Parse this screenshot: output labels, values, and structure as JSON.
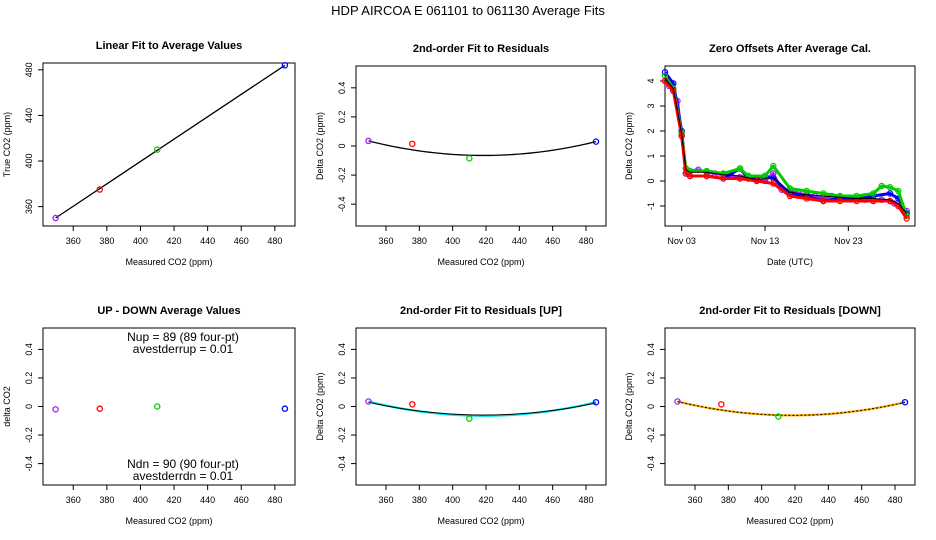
{
  "figure": {
    "title": "HDP    AIRCOA E    061101 to 061130    Average Fits"
  },
  "chart_data": [
    {
      "id": "p1",
      "type": "scatter",
      "title": "Linear Fit to Average Values",
      "xlabel": "Measured CO2 (ppm)",
      "ylabel": "True CO2 (ppm)",
      "xlim": [
        342,
        492
      ],
      "ylim": [
        343,
        486
      ],
      "xticks": [
        360,
        380,
        400,
        420,
        440,
        460,
        480
      ],
      "yticks": [
        360,
        400,
        440,
        480
      ],
      "points": [
        {
          "x": 349.5,
          "y": 350.0,
          "color": "#a020f0"
        },
        {
          "x": 375.8,
          "y": 375.0,
          "color": "#ff0000"
        },
        {
          "x": 410.0,
          "y": 410.0,
          "color": "#00cc00"
        },
        {
          "x": 486.0,
          "y": 484.0,
          "color": "#0000ff"
        }
      ],
      "fit_line": {
        "x": [
          349.5,
          486.0
        ],
        "y": [
          350.0,
          484.0
        ],
        "color": "#000000"
      }
    },
    {
      "id": "p2",
      "type": "scatter",
      "title": "2nd-order Fit to Residuals",
      "xlabel": "Measured CO2 (ppm)",
      "ylabel": "Delta CO2 (ppm)",
      "xlim": [
        342,
        492
      ],
      "ylim": [
        -0.55,
        0.55
      ],
      "xticks": [
        360,
        380,
        400,
        420,
        440,
        460,
        480
      ],
      "yticks": [
        -0.4,
        -0.2,
        0.0,
        0.2,
        0.4
      ],
      "points": [
        {
          "x": 349.5,
          "y": 0.035,
          "color": "#a020f0"
        },
        {
          "x": 375.8,
          "y": 0.015,
          "color": "#ff0000"
        },
        {
          "x": 410.0,
          "y": -0.085,
          "color": "#00cc00"
        },
        {
          "x": 486.0,
          "y": 0.03,
          "color": "#0000ff"
        }
      ],
      "fit_curve": {
        "x": [
          349.5,
          418.0,
          486.0
        ],
        "y": [
          0.035,
          -0.065,
          0.03
        ],
        "color": "#000000"
      }
    },
    {
      "id": "p3",
      "type": "line",
      "title": "Zero Offsets After Average Cal.",
      "xlabel": "Date (UTC)",
      "ylabel": "Delta CO2 (ppm)",
      "xlim": [
        0,
        30
      ],
      "ylim": [
        -1.8,
        4.6
      ],
      "xticks": [
        2,
        12,
        22
      ],
      "xticklabels": [
        "Nov 03",
        "Nov 13",
        "Nov 23"
      ],
      "yticks": [
        -1,
        0,
        1,
        2,
        3,
        4
      ],
      "series": [
        {
          "name": "purple",
          "color": "#a020f0",
          "x": [
            0,
            0.5,
            1,
            1.5,
            2,
            2.5,
            3,
            4,
            5,
            6,
            7,
            8,
            9,
            10,
            11,
            12,
            13,
            14,
            15,
            16,
            17,
            18,
            19,
            20,
            21,
            22,
            23,
            24,
            25,
            26,
            27,
            27.5,
            28,
            28.5,
            29
          ],
          "y": [
            4.0,
            3.8,
            3.6,
            3.2,
            1.8,
            0.5,
            0.4,
            0.45,
            0.35,
            0.3,
            0.25,
            0.2,
            0.15,
            0.2,
            0.05,
            0.0,
            0.3,
            -0.35,
            -0.4,
            -0.5,
            -0.55,
            -0.6,
            -0.7,
            -0.6,
            -0.65,
            -0.7,
            -0.7,
            -0.75,
            -0.8,
            -0.75,
            -0.8,
            -0.9,
            -1.0,
            -1.1,
            -1.2
          ]
        },
        {
          "name": "blue",
          "color": "#0000ff",
          "x": [
            0,
            1,
            2,
            2.5,
            3,
            5,
            7,
            9,
            10,
            12,
            13,
            15,
            17,
            19,
            21,
            23,
            25,
            27,
            28,
            29
          ],
          "y": [
            4.35,
            3.9,
            2.0,
            0.3,
            0.2,
            0.2,
            0.1,
            0.5,
            0.1,
            0.2,
            0.1,
            -0.5,
            -0.6,
            -0.8,
            -0.7,
            -0.7,
            -0.6,
            -0.5,
            -0.7,
            -1.3
          ]
        },
        {
          "name": "green",
          "color": "#00cc00",
          "x": [
            0,
            1,
            2,
            2.5,
            3,
            5,
            7,
            9,
            10,
            12,
            13,
            15,
            17,
            19,
            21,
            23,
            25,
            26,
            27,
            28,
            29
          ],
          "y": [
            4.2,
            3.7,
            1.9,
            0.5,
            0.4,
            0.4,
            0.3,
            0.5,
            0.2,
            0.2,
            0.6,
            -0.3,
            -0.4,
            -0.5,
            -0.6,
            -0.6,
            -0.5,
            -0.2,
            -0.25,
            -0.4,
            -1.4
          ]
        },
        {
          "name": "red",
          "color": "#ff0000",
          "x": [
            0,
            1,
            2,
            2.5,
            3,
            5,
            7,
            9,
            11,
            13,
            15,
            17,
            19,
            21,
            23,
            25,
            27,
            28,
            29
          ],
          "y": [
            4.0,
            3.6,
            1.8,
            0.3,
            0.2,
            0.2,
            0.1,
            0.1,
            0.0,
            -0.1,
            -0.6,
            -0.7,
            -0.8,
            -0.8,
            -0.8,
            -0.8,
            -0.8,
            -1.0,
            -1.5
          ]
        },
        {
          "name": "black",
          "color": "#000000",
          "x": [
            0,
            1,
            2,
            2.5,
            3,
            5,
            7,
            9,
            11,
            13,
            15,
            17,
            19,
            21,
            23,
            25,
            27,
            28,
            29
          ],
          "y": [
            4.1,
            3.7,
            1.9,
            0.45,
            0.35,
            0.35,
            0.25,
            0.2,
            0.05,
            0.15,
            -0.45,
            -0.55,
            -0.6,
            -0.65,
            -0.7,
            -0.7,
            -0.75,
            -0.9,
            -1.3
          ]
        }
      ]
    },
    {
      "id": "p4",
      "type": "scatter",
      "title": "UP - DOWN Average Values",
      "xlabel": "Measured CO2 (ppm)",
      "ylabel": "delta CO2",
      "xlim": [
        342,
        492
      ],
      "ylim": [
        -0.55,
        0.55
      ],
      "xticks": [
        360,
        380,
        400,
        420,
        440,
        460,
        480
      ],
      "yticks": [
        -0.4,
        -0.2,
        0.0,
        0.2,
        0.4
      ],
      "points": [
        {
          "x": 349.5,
          "y": -0.02,
          "color": "#a020f0"
        },
        {
          "x": 375.8,
          "y": -0.015,
          "color": "#ff0000"
        },
        {
          "x": 410.0,
          "y": 0.0,
          "color": "#00cc00"
        },
        {
          "x": 486.0,
          "y": -0.015,
          "color": "#0000ff"
        }
      ],
      "annotations": {
        "nup": "Nup = 89 (89 four-pt)",
        "avestderrup": "avestderrup =  0.01",
        "ndn": "Ndn = 90 (90 four-pt)",
        "avestderrdn": "avestderrdn =  0.01"
      }
    },
    {
      "id": "p5",
      "type": "scatter",
      "title": "2nd-order Fit to Residuals [UP]",
      "xlabel": "Measured CO2 (ppm)",
      "ylabel": "Delta CO2 (ppm)",
      "xlim": [
        342,
        492
      ],
      "ylim": [
        -0.55,
        0.55
      ],
      "xticks": [
        360,
        380,
        400,
        420,
        440,
        460,
        480
      ],
      "yticks": [
        -0.4,
        -0.2,
        0.0,
        0.2,
        0.4
      ],
      "points": [
        {
          "x": 349.5,
          "y": 0.035,
          "color": "#a020f0"
        },
        {
          "x": 375.8,
          "y": 0.015,
          "color": "#ff0000"
        },
        {
          "x": 410.0,
          "y": -0.085,
          "color": "#00cc00"
        },
        {
          "x": 486.0,
          "y": 0.03,
          "color": "#0000ff"
        }
      ],
      "fit_curve": {
        "x": [
          349.5,
          418.0,
          486.0
        ],
        "y": [
          0.035,
          -0.065,
          0.03
        ],
        "color": "#00e5ee"
      },
      "fit_curve2": {
        "x": [
          349.5,
          418.0,
          486.0
        ],
        "y": [
          0.03,
          -0.06,
          0.025
        ],
        "color": "#000000"
      }
    },
    {
      "id": "p6",
      "type": "scatter",
      "title": "2nd-order Fit to Residuals [DOWN]",
      "xlabel": "Measured CO2 (ppm)",
      "ylabel": "Delta CO2 (ppm)",
      "xlim": [
        342,
        492
      ],
      "ylim": [
        -0.55,
        0.55
      ],
      "xticks": [
        360,
        380,
        400,
        420,
        440,
        460,
        480
      ],
      "yticks": [
        -0.4,
        -0.2,
        0.0,
        0.2,
        0.4
      ],
      "points": [
        {
          "x": 349.5,
          "y": 0.035,
          "color": "#a020f0"
        },
        {
          "x": 375.8,
          "y": 0.015,
          "color": "#ff0000"
        },
        {
          "x": 410.0,
          "y": -0.07,
          "color": "#00cc00"
        },
        {
          "x": 486.0,
          "y": 0.03,
          "color": "#0000ff"
        }
      ],
      "fit_curve": {
        "x": [
          349.5,
          418.0,
          486.0
        ],
        "y": [
          0.035,
          -0.062,
          0.03
        ],
        "color": "#ffa500"
      },
      "fit_curve2": {
        "x": [
          349.5,
          418.0,
          486.0
        ],
        "y": [
          0.035,
          -0.062,
          0.03
        ],
        "color": "#000000",
        "dashed": true
      }
    }
  ]
}
